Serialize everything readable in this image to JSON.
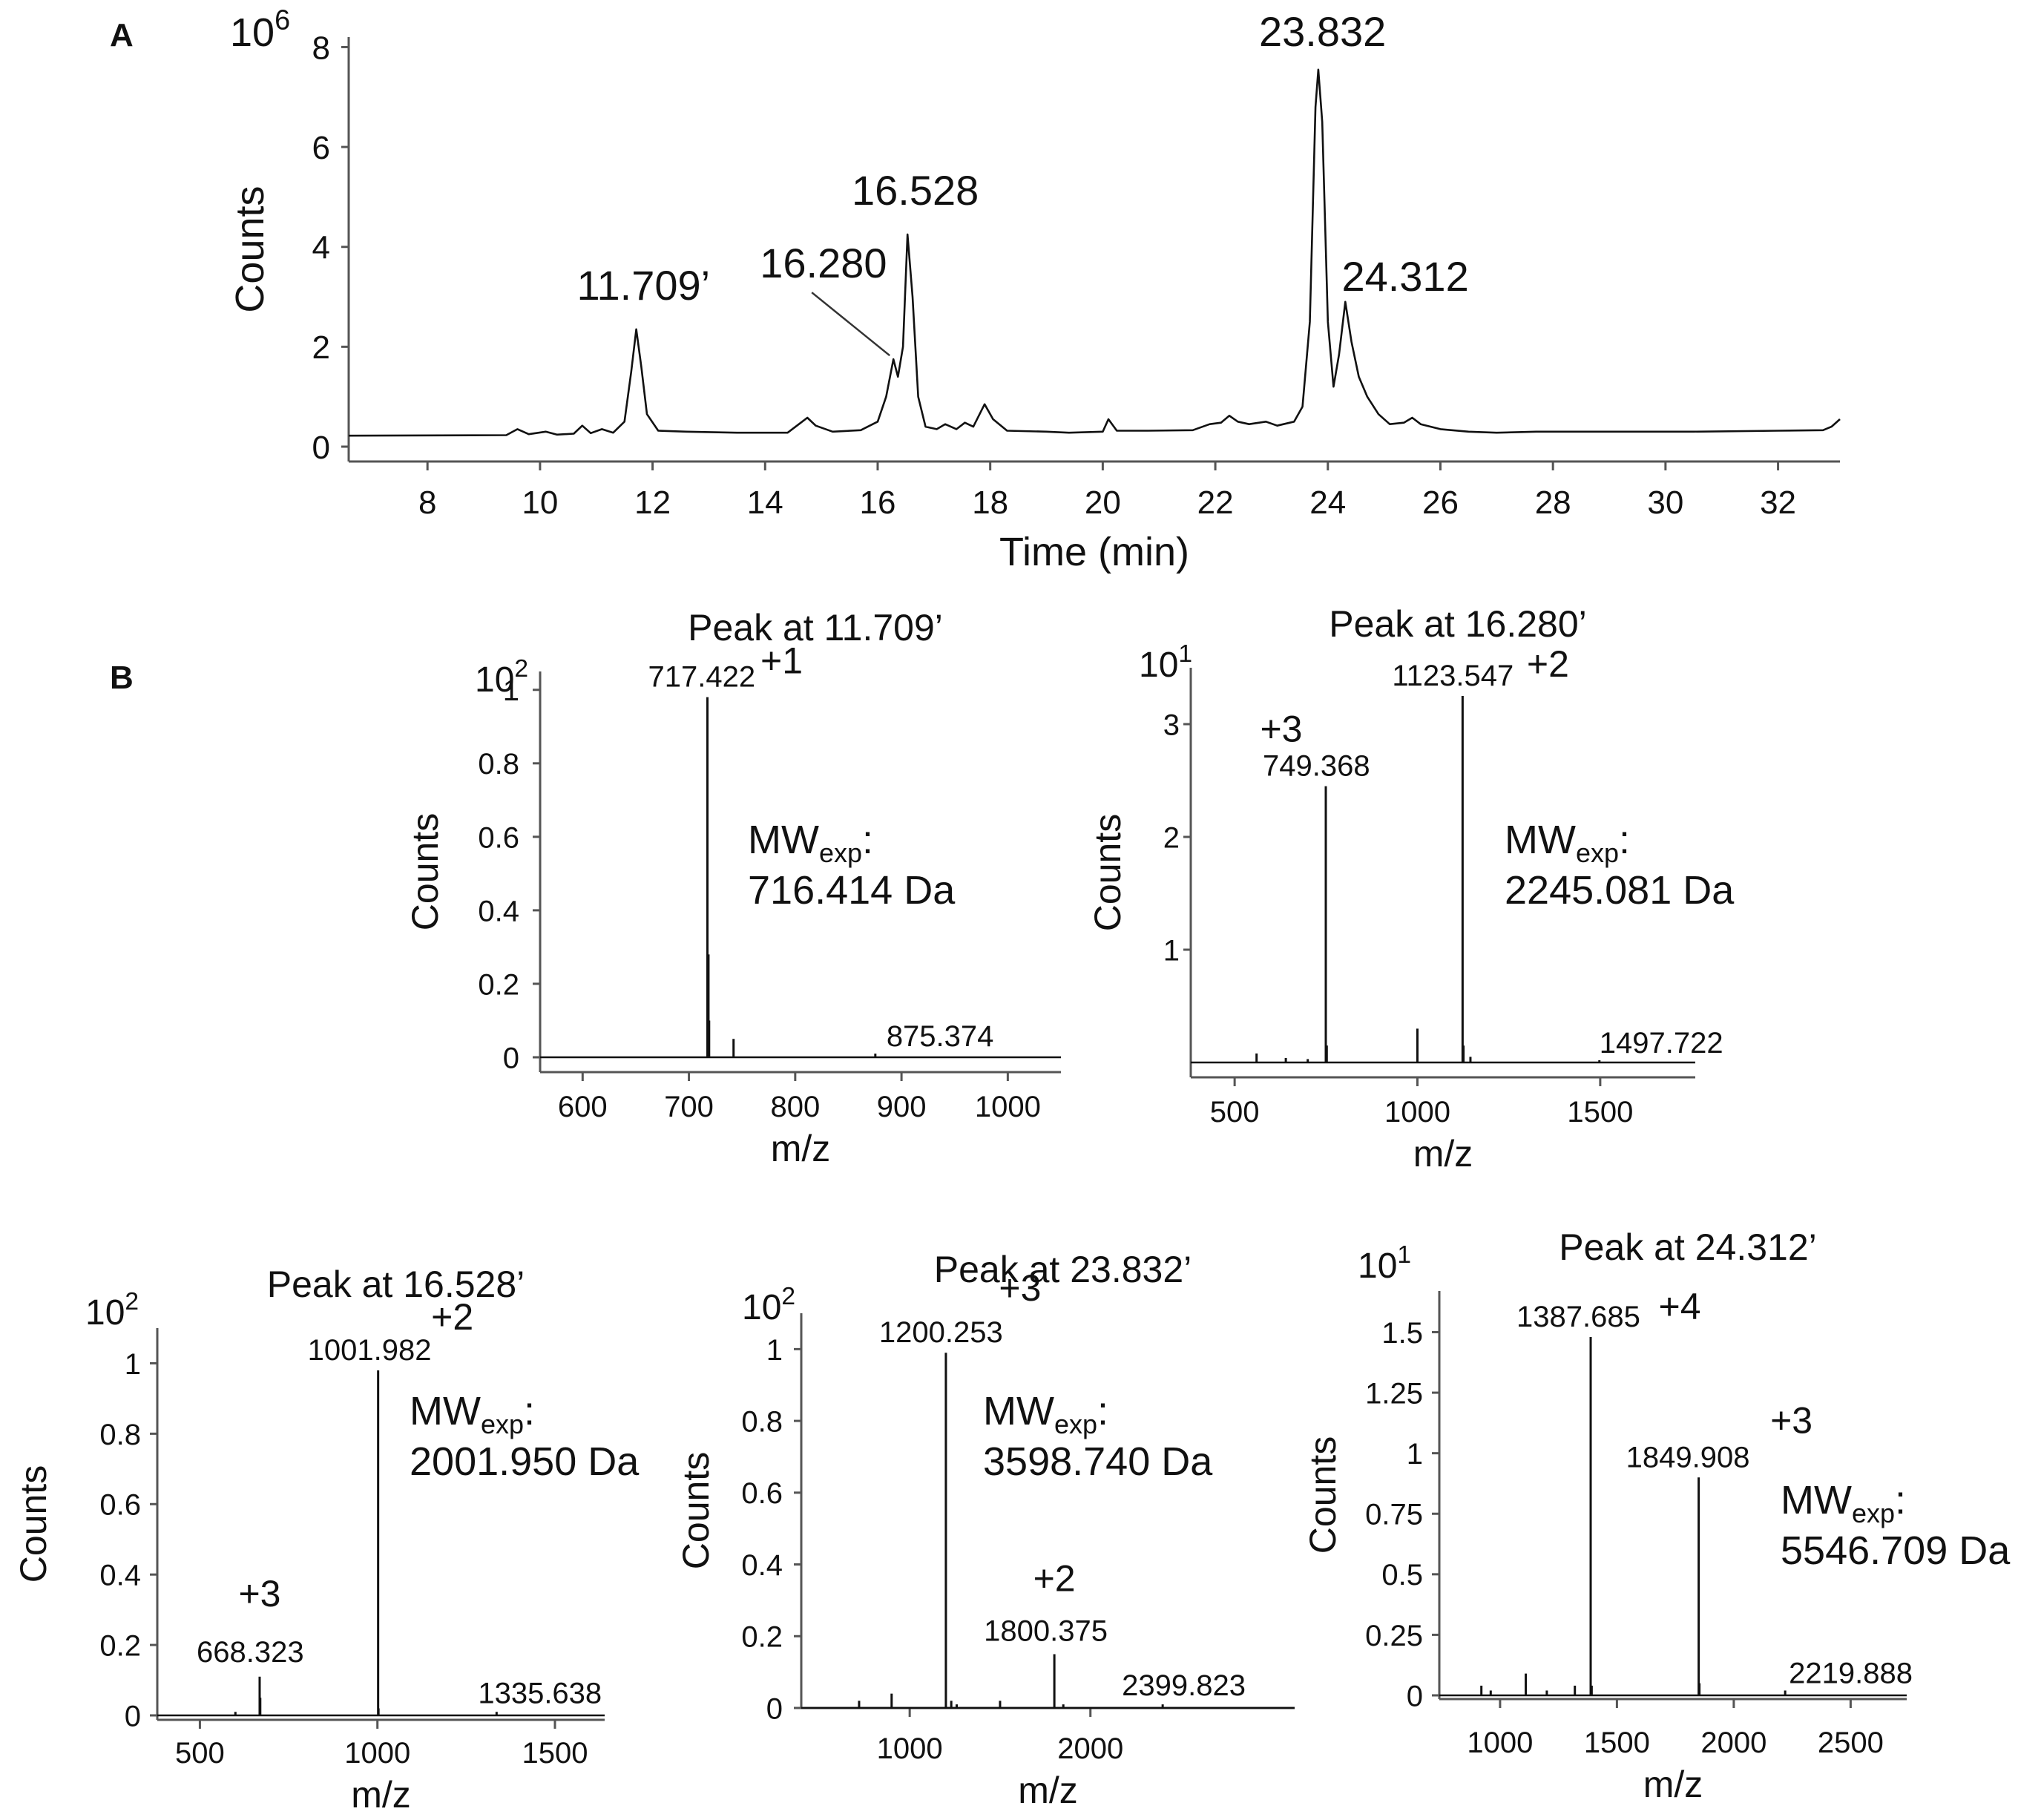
{
  "panel_labels": {
    "a": "A",
    "b": "B"
  },
  "chart_data": [
    {
      "id": "A",
      "type": "line",
      "xlabel": "Time (min)",
      "ylabel": "Counts",
      "y_multiplier": "10",
      "y_multiplier_exp": "6",
      "xlim": [
        6.6,
        33.1
      ],
      "ylim": [
        0,
        8.2
      ],
      "x_ticks": [
        8,
        10,
        12,
        14,
        16,
        18,
        20,
        22,
        24,
        26,
        28,
        30,
        32
      ],
      "y_ticks": [
        0,
        2,
        4,
        6,
        8
      ],
      "trace": [
        [
          6.6,
          0.22
        ],
        [
          9.4,
          0.23
        ],
        [
          9.6,
          0.35
        ],
        [
          9.8,
          0.25
        ],
        [
          10.1,
          0.3
        ],
        [
          10.3,
          0.24
        ],
        [
          10.6,
          0.26
        ],
        [
          10.75,
          0.42
        ],
        [
          10.9,
          0.27
        ],
        [
          11.1,
          0.35
        ],
        [
          11.3,
          0.28
        ],
        [
          11.5,
          0.5
        ],
        [
          11.62,
          1.5
        ],
        [
          11.71,
          2.35
        ],
        [
          11.8,
          1.6
        ],
        [
          11.9,
          0.65
        ],
        [
          12.1,
          0.32
        ],
        [
          12.6,
          0.3
        ],
        [
          13.5,
          0.28
        ],
        [
          14.4,
          0.28
        ],
        [
          14.6,
          0.45
        ],
        [
          14.75,
          0.58
        ],
        [
          14.9,
          0.42
        ],
        [
          15.2,
          0.3
        ],
        [
          15.7,
          0.33
        ],
        [
          16.0,
          0.5
        ],
        [
          16.15,
          1.0
        ],
        [
          16.28,
          1.75
        ],
        [
          16.36,
          1.4
        ],
        [
          16.45,
          2.0
        ],
        [
          16.53,
          4.25
        ],
        [
          16.62,
          3.0
        ],
        [
          16.72,
          1.0
        ],
        [
          16.85,
          0.4
        ],
        [
          17.05,
          0.35
        ],
        [
          17.2,
          0.45
        ],
        [
          17.4,
          0.35
        ],
        [
          17.55,
          0.48
        ],
        [
          17.7,
          0.4
        ],
        [
          17.9,
          0.85
        ],
        [
          18.05,
          0.55
        ],
        [
          18.3,
          0.32
        ],
        [
          19.0,
          0.3
        ],
        [
          19.4,
          0.28
        ],
        [
          20.0,
          0.3
        ],
        [
          20.1,
          0.55
        ],
        [
          20.25,
          0.32
        ],
        [
          20.8,
          0.32
        ],
        [
          21.6,
          0.33
        ],
        [
          21.9,
          0.45
        ],
        [
          22.1,
          0.48
        ],
        [
          22.25,
          0.62
        ],
        [
          22.4,
          0.5
        ],
        [
          22.6,
          0.45
        ],
        [
          22.9,
          0.5
        ],
        [
          23.1,
          0.42
        ],
        [
          23.4,
          0.5
        ],
        [
          23.55,
          0.8
        ],
        [
          23.68,
          2.5
        ],
        [
          23.78,
          6.8
        ],
        [
          23.83,
          7.55
        ],
        [
          23.9,
          6.5
        ],
        [
          24.0,
          2.5
        ],
        [
          24.1,
          1.2
        ],
        [
          24.2,
          1.85
        ],
        [
          24.31,
          2.9
        ],
        [
          24.42,
          2.1
        ],
        [
          24.55,
          1.4
        ],
        [
          24.7,
          1.0
        ],
        [
          24.9,
          0.65
        ],
        [
          25.1,
          0.45
        ],
        [
          25.35,
          0.48
        ],
        [
          25.5,
          0.58
        ],
        [
          25.65,
          0.45
        ],
        [
          26.0,
          0.35
        ],
        [
          26.5,
          0.3
        ],
        [
          27.0,
          0.28
        ],
        [
          27.7,
          0.3
        ],
        [
          29.0,
          0.3
        ],
        [
          30.5,
          0.3
        ],
        [
          32.0,
          0.32
        ],
        [
          32.8,
          0.33
        ],
        [
          32.95,
          0.4
        ],
        [
          33.1,
          0.55
        ]
      ],
      "peak_labels": [
        {
          "text": "11.709’",
          "x": 11.709,
          "y": 2.35
        },
        {
          "text": "16.280",
          "x": 16.28,
          "y": 1.75
        },
        {
          "text": "16.528",
          "x": 16.528,
          "y": 4.25
        },
        {
          "text": "23.832",
          "x": 23.832,
          "y": 7.55
        },
        {
          "text": "24.312",
          "x": 24.312,
          "y": 2.9
        }
      ]
    },
    {
      "id": "B1",
      "type": "bar",
      "title": "Peak at 11.709’",
      "xlabel": "m/z",
      "ylabel": "Counts",
      "y_multiplier": "10",
      "y_multiplier_exp": "2",
      "xlim": [
        560,
        1050
      ],
      "ylim": [
        0,
        1.05
      ],
      "x_ticks": [
        600,
        700,
        800,
        900,
        1000
      ],
      "y_ticks": [
        0,
        0.2,
        0.4,
        0.6,
        0.8,
        1
      ],
      "sticks": [
        [
          717.422,
          0.98
        ],
        [
          718.4,
          0.28
        ],
        [
          719.0,
          0.1
        ],
        [
          742.0,
          0.05
        ],
        [
          875.374,
          0.01
        ]
      ],
      "labels": [
        {
          "text": "717.422",
          "x": 717.422,
          "y": 0.98,
          "charge": "+1"
        },
        {
          "text": "875.374",
          "x": 875.374,
          "y": 0.01,
          "charge": ""
        }
      ],
      "mw_label": "MW",
      "mw_sub": "exp",
      "mw_suffix": ":",
      "mw_value": "716.414 Da"
    },
    {
      "id": "B2",
      "type": "bar",
      "title": "Peak at 16.280’",
      "xlabel": "m/z",
      "ylabel": "Counts",
      "y_multiplier": "10",
      "y_multiplier_exp": "1",
      "xlim": [
        380,
        1760
      ],
      "ylim": [
        0,
        3.5
      ],
      "x_ticks": [
        500,
        1000,
        1500
      ],
      "y_ticks": [
        1,
        2,
        3
      ],
      "sticks": [
        [
          560,
          0.08
        ],
        [
          640,
          0.04
        ],
        [
          700,
          0.03
        ],
        [
          749.368,
          2.45
        ],
        [
          752,
          0.15
        ],
        [
          1000,
          0.3
        ],
        [
          1123.547,
          3.25
        ],
        [
          1126,
          0.15
        ],
        [
          1145,
          0.05
        ],
        [
          1497.722,
          0.02
        ]
      ],
      "labels": [
        {
          "text": "749.368",
          "x": 749.368,
          "y": 2.45,
          "charge": "+3"
        },
        {
          "text": "1123.547",
          "x": 1123.547,
          "y": 3.25,
          "charge": "+2"
        },
        {
          "text": "1497.722",
          "x": 1497.722,
          "y": 0.02,
          "charge": ""
        }
      ],
      "mw_label": "MW",
      "mw_sub": "exp",
      "mw_suffix": ":",
      "mw_value": "2245.081 Da"
    },
    {
      "id": "B3",
      "type": "bar",
      "title": "Peak at 16.528’",
      "xlabel": "m/z",
      "ylabel": "Counts",
      "y_multiplier": "10",
      "y_multiplier_exp": "2",
      "xlim": [
        380,
        1640
      ],
      "ylim": [
        0,
        1.1
      ],
      "x_ticks": [
        500,
        1000,
        1500
      ],
      "y_ticks": [
        0,
        0.2,
        0.4,
        0.6,
        0.8,
        1
      ],
      "sticks": [
        [
          600,
          0.01
        ],
        [
          668.323,
          0.11
        ],
        [
          670,
          0.05
        ],
        [
          1001.982,
          0.98
        ],
        [
          1003,
          0.02
        ],
        [
          1335.638,
          0.01
        ]
      ],
      "labels": [
        {
          "text": "668.323",
          "x": 668.323,
          "y": 0.11,
          "charge": "+3"
        },
        {
          "text": "1001.982",
          "x": 1001.982,
          "y": 0.98,
          "charge": "+2"
        },
        {
          "text": "1335.638",
          "x": 1335.638,
          "y": 0.01,
          "charge": ""
        }
      ],
      "mw_label": "MW",
      "mw_sub": "exp",
      "mw_suffix": ":",
      "mw_value": "2001.950 Da"
    },
    {
      "id": "B4",
      "type": "bar",
      "title": "Peak at 23.832’",
      "xlabel": "m/z",
      "ylabel": "Counts",
      "y_multiplier": "10",
      "y_multiplier_exp": "2",
      "xlim": [
        400,
        3130
      ],
      "ylim": [
        0,
        1.1
      ],
      "x_ticks": [
        1000,
        2000
      ],
      "y_ticks": [
        0,
        0.2,
        0.4,
        0.6,
        0.8,
        1
      ],
      "sticks": [
        [
          720,
          0.02
        ],
        [
          900,
          0.04
        ],
        [
          1200.253,
          0.99
        ],
        [
          1230,
          0.02
        ],
        [
          1260,
          0.01
        ],
        [
          1500,
          0.02
        ],
        [
          1800.375,
          0.15
        ],
        [
          1850,
          0.01
        ],
        [
          2399.823,
          0.01
        ]
      ],
      "labels": [
        {
          "text": "1200.253",
          "x": 1200.253,
          "y": 0.99,
          "charge": "+3"
        },
        {
          "text": "1800.375",
          "x": 1800.375,
          "y": 0.15,
          "charge": "+2"
        },
        {
          "text": "2399.823",
          "x": 2399.823,
          "y": 0.01,
          "charge": ""
        }
      ],
      "mw_label": "MW",
      "mw_sub": "exp",
      "mw_suffix": ":",
      "mw_value": "3598.740 Da"
    },
    {
      "id": "B5",
      "type": "bar",
      "title": "Peak at 24.312’",
      "xlabel": "m/z",
      "ylabel": "Counts",
      "y_multiplier": "10",
      "y_multiplier_exp": "1",
      "xlim": [
        740,
        2740
      ],
      "ylim": [
        0,
        1.67
      ],
      "x_ticks": [
        1000,
        1500,
        2000,
        2500
      ],
      "y_ticks": [
        0,
        0.25,
        0.5,
        0.75,
        1,
        1.25,
        1.5
      ],
      "sticks": [
        [
          920,
          0.04
        ],
        [
          960,
          0.02
        ],
        [
          1110,
          0.09
        ],
        [
          1200,
          0.02
        ],
        [
          1320,
          0.04
        ],
        [
          1387.685,
          1.48
        ],
        [
          1392,
          0.04
        ],
        [
          1849.908,
          0.9
        ],
        [
          1853,
          0.05
        ],
        [
          2219.888,
          0.02
        ]
      ],
      "labels": [
        {
          "text": "1387.685",
          "x": 1387.685,
          "y": 1.48,
          "charge": "+4"
        },
        {
          "text": "1849.908",
          "x": 1849.908,
          "y": 0.9,
          "charge": "+3"
        },
        {
          "text": "2219.888",
          "x": 2219.888,
          "y": 0.02,
          "charge": ""
        }
      ],
      "mw_label": "MW",
      "mw_sub": "exp",
      "mw_suffix": ":",
      "mw_value": "5546.709 Da"
    }
  ]
}
